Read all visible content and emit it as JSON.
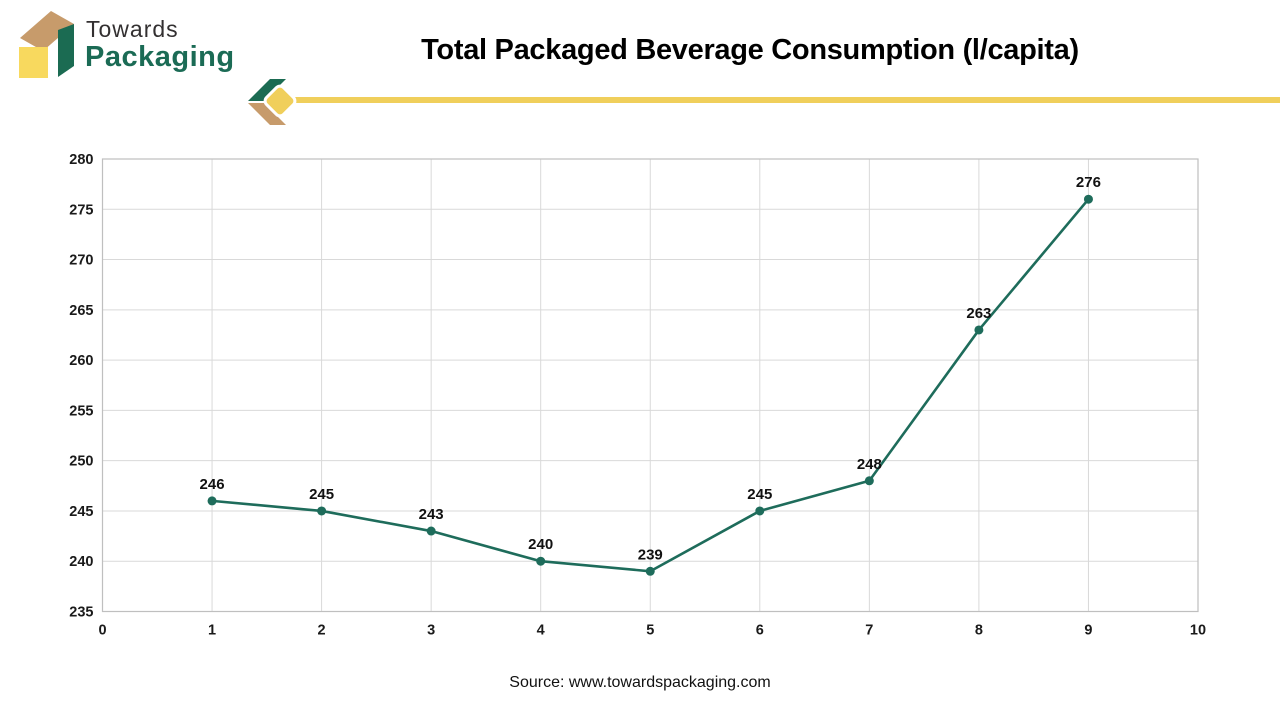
{
  "logo": {
    "line1": "Towards",
    "line2": "Packaging"
  },
  "header": {
    "title": "Total Packaged Beverage Consumption (l/capita)"
  },
  "footer": {
    "source": "Source: www.towardspackaging.com"
  },
  "colors": {
    "line": "#1E6C5B",
    "marker": "#1E6C5B",
    "accent_yellow": "#F0CF5B",
    "logo_green": "#1B6B52",
    "logo_tan": "#C79B6B",
    "logo_yellow": "#F8D95E",
    "grid": "#D9D9D9",
    "plot_border": "#BFBFBF"
  },
  "chart_data": {
    "type": "line",
    "title": "Total Packaged Beverage Consumption (l/capita)",
    "x": [
      1,
      2,
      3,
      4,
      5,
      6,
      7,
      8,
      9
    ],
    "values": [
      246,
      245,
      243,
      240,
      239,
      245,
      248,
      263,
      276
    ],
    "xlabel": "",
    "ylabel": "",
    "xlim": [
      0,
      10
    ],
    "ylim": [
      235,
      280
    ],
    "x_ticks": [
      0,
      1,
      2,
      3,
      4,
      5,
      6,
      7,
      8,
      9,
      10
    ],
    "y_ticks": [
      235,
      240,
      245,
      250,
      255,
      260,
      265,
      270,
      275,
      280
    ],
    "grid": true,
    "legend": "none",
    "data_labels": true
  }
}
